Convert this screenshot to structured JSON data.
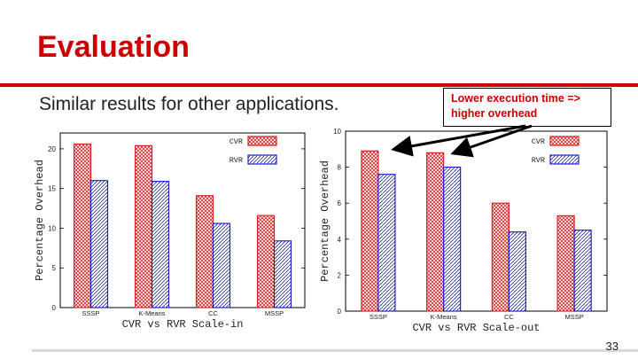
{
  "slide": {
    "title": "Evaluation",
    "subtitle": "Similar results for other applications.",
    "callout": {
      "line1": "Lower execution time =>",
      "line2": "higher overhead"
    },
    "page_number": "33"
  },
  "colors": {
    "title": "#cc0000",
    "rule": "#cc0000",
    "cvr": "#dd2222",
    "rvr": "#2222cc",
    "callout_text": "#cc0000"
  },
  "chart_data": [
    {
      "type": "bar",
      "categories": [
        "SSSP",
        "K-Means",
        "CC",
        "MSSP"
      ],
      "series": [
        {
          "name": "CVR",
          "values": [
            20.6,
            20.4,
            14.1,
            11.6
          ]
        },
        {
          "name": "RVR",
          "values": [
            16.0,
            15.9,
            10.6,
            8.4
          ]
        }
      ],
      "xlabel": "CVR vs RVR Scale-in",
      "ylabel": "Percentage Overhead",
      "ylim": [
        0,
        22
      ],
      "yticks": [
        0,
        5,
        10,
        15,
        20
      ],
      "legend": "top-right",
      "grid": false
    },
    {
      "type": "bar",
      "categories": [
        "SSSP",
        "K-Means",
        "CC",
        "MSSP"
      ],
      "series": [
        {
          "name": "CVR",
          "values": [
            8.9,
            8.8,
            6.0,
            5.3
          ]
        },
        {
          "name": "RVR",
          "values": [
            7.6,
            8.0,
            4.4,
            4.5
          ]
        }
      ],
      "xlabel": "CVR vs RVR Scale-out",
      "ylabel": "Percentage Overhead",
      "ylim": [
        0,
        10
      ],
      "yticks": [
        0,
        2,
        4,
        6,
        8,
        10
      ],
      "legend": "top-right",
      "grid": false
    }
  ]
}
